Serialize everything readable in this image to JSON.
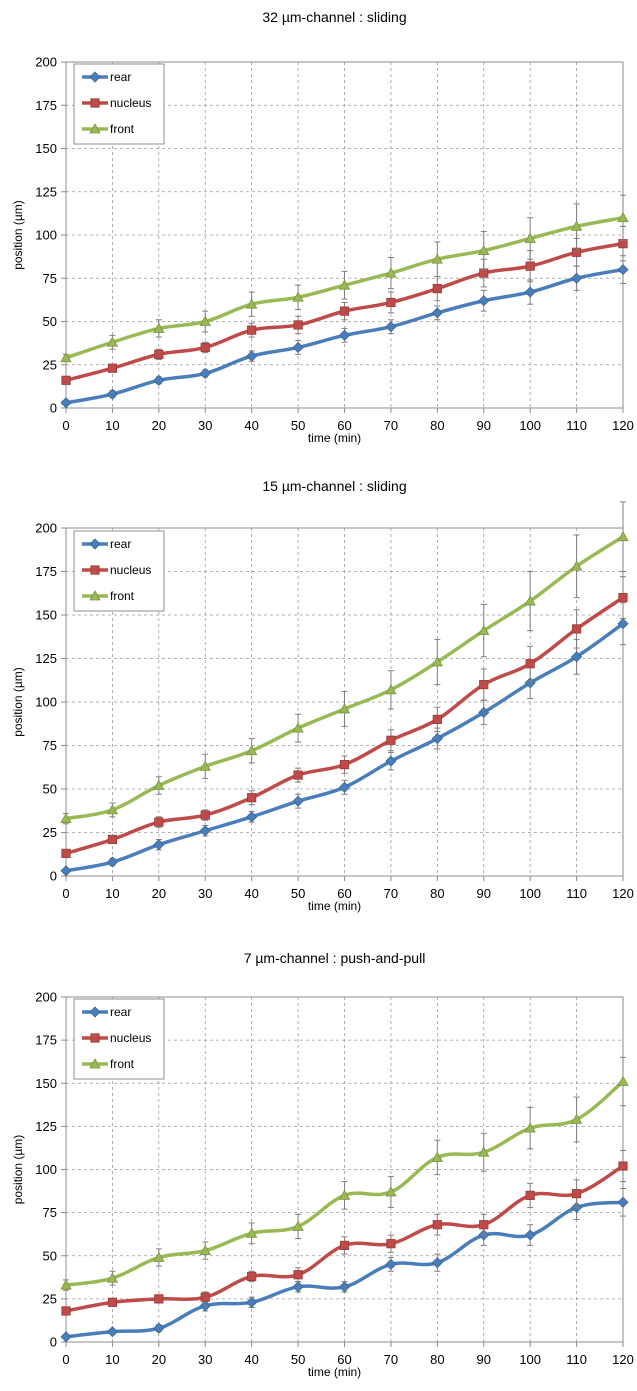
{
  "chart_data": [
    {
      "type": "line",
      "title": "32 µm-channel : sliding",
      "xlabel": "time (min)",
      "ylabel": "position (µm)",
      "x": [
        0,
        10,
        20,
        30,
        40,
        50,
        60,
        70,
        80,
        90,
        100,
        110,
        120
      ],
      "xlim": [
        0,
        120
      ],
      "ylim": [
        0,
        200
      ],
      "xticks": [
        0,
        10,
        20,
        30,
        40,
        50,
        60,
        70,
        80,
        90,
        100,
        110,
        120
      ],
      "yticks": [
        0,
        25,
        50,
        75,
        100,
        125,
        150,
        175,
        200
      ],
      "grid": true,
      "legend_position": "top-left",
      "series": [
        {
          "name": "rear",
          "color": "#4a7ebb",
          "marker": "diamond",
          "values": [
            3,
            8,
            16,
            20,
            30,
            35,
            42,
            47,
            55,
            62,
            67,
            75,
            80
          ],
          "errors": [
            1,
            2,
            2,
            2,
            3,
            4,
            4,
            4,
            4,
            6,
            7,
            7,
            8
          ]
        },
        {
          "name": "nucleus",
          "color": "#be4b48",
          "marker": "square",
          "values": [
            16,
            23,
            31,
            35,
            45,
            48,
            56,
            61,
            69,
            78,
            82,
            90,
            95
          ],
          "errors": [
            2,
            2,
            3,
            3,
            4,
            5,
            5,
            6,
            7,
            8,
            9,
            8,
            10
          ]
        },
        {
          "name": "front",
          "color": "#98b954",
          "marker": "triangle",
          "values": [
            29,
            38,
            46,
            50,
            60,
            64,
            71,
            78,
            86,
            91,
            98,
            105,
            110
          ],
          "errors": [
            2,
            4,
            5,
            6,
            7,
            7,
            8,
            9,
            10,
            11,
            12,
            13,
            13
          ]
        }
      ]
    },
    {
      "type": "line",
      "title": "15 µm-channel : sliding",
      "xlabel": "time (min)",
      "ylabel": "position (µm)",
      "x": [
        0,
        10,
        20,
        30,
        40,
        50,
        60,
        70,
        80,
        90,
        100,
        110,
        120
      ],
      "xlim": [
        0,
        120
      ],
      "ylim": [
        0,
        200
      ],
      "xticks": [
        0,
        10,
        20,
        30,
        40,
        50,
        60,
        70,
        80,
        90,
        100,
        110,
        120
      ],
      "yticks": [
        0,
        25,
        50,
        75,
        100,
        125,
        150,
        175,
        200
      ],
      "grid": true,
      "legend_position": "top-left",
      "series": [
        {
          "name": "rear",
          "color": "#4a7ebb",
          "marker": "diamond",
          "values": [
            3,
            8,
            18,
            26,
            34,
            43,
            51,
            66,
            79,
            94,
            111,
            126,
            145
          ],
          "errors": [
            1,
            2,
            3,
            3,
            3,
            4,
            4,
            5,
            6,
            7,
            9,
            10,
            12
          ]
        },
        {
          "name": "nucleus",
          "color": "#be4b48",
          "marker": "square",
          "values": [
            13,
            21,
            31,
            35,
            45,
            58,
            64,
            78,
            90,
            110,
            122,
            142,
            160
          ],
          "errors": [
            2,
            2,
            3,
            3,
            4,
            4,
            5,
            6,
            7,
            9,
            10,
            11,
            12
          ]
        },
        {
          "name": "front",
          "color": "#98b954",
          "marker": "triangle",
          "values": [
            33,
            38,
            52,
            63,
            72,
            85,
            96,
            107,
            123,
            141,
            158,
            178,
            195
          ],
          "errors": [
            3,
            4,
            5,
            7,
            7,
            8,
            10,
            11,
            13,
            15,
            17,
            18,
            20
          ]
        }
      ]
    },
    {
      "type": "line",
      "title": "7 µm-channel : push-and-pull",
      "xlabel": "time (min)",
      "ylabel": "position (µm)",
      "x": [
        0,
        10,
        20,
        30,
        40,
        50,
        60,
        70,
        80,
        90,
        100,
        110,
        120
      ],
      "xlim": [
        0,
        120
      ],
      "ylim": [
        0,
        200
      ],
      "xticks": [
        0,
        10,
        20,
        30,
        40,
        50,
        60,
        70,
        80,
        90,
        100,
        110,
        120
      ],
      "yticks": [
        0,
        25,
        50,
        75,
        100,
        125,
        150,
        175,
        200
      ],
      "grid": true,
      "legend_position": "top-left",
      "series": [
        {
          "name": "rear",
          "color": "#4a7ebb",
          "marker": "diamond",
          "values": [
            3,
            6,
            8,
            21,
            23,
            32,
            32,
            45,
            46,
            62,
            62,
            78,
            81
          ],
          "errors": [
            1,
            1,
            2,
            3,
            3,
            3,
            3,
            4,
            5,
            6,
            6,
            7,
            8
          ]
        },
        {
          "name": "nucleus",
          "color": "#be4b48",
          "marker": "square",
          "values": [
            18,
            23,
            25,
            26,
            38,
            39,
            56,
            57,
            68,
            68,
            85,
            86,
            102
          ],
          "errors": [
            2,
            2,
            2,
            3,
            3,
            4,
            5,
            5,
            6,
            6,
            7,
            8,
            9
          ]
        },
        {
          "name": "front",
          "color": "#98b954",
          "marker": "triangle",
          "values": [
            33,
            37,
            49,
            53,
            63,
            67,
            85,
            87,
            107,
            110,
            124,
            129,
            151
          ],
          "errors": [
            3,
            4,
            5,
            5,
            6,
            7,
            8,
            9,
            10,
            11,
            12,
            13,
            14
          ]
        }
      ]
    }
  ]
}
